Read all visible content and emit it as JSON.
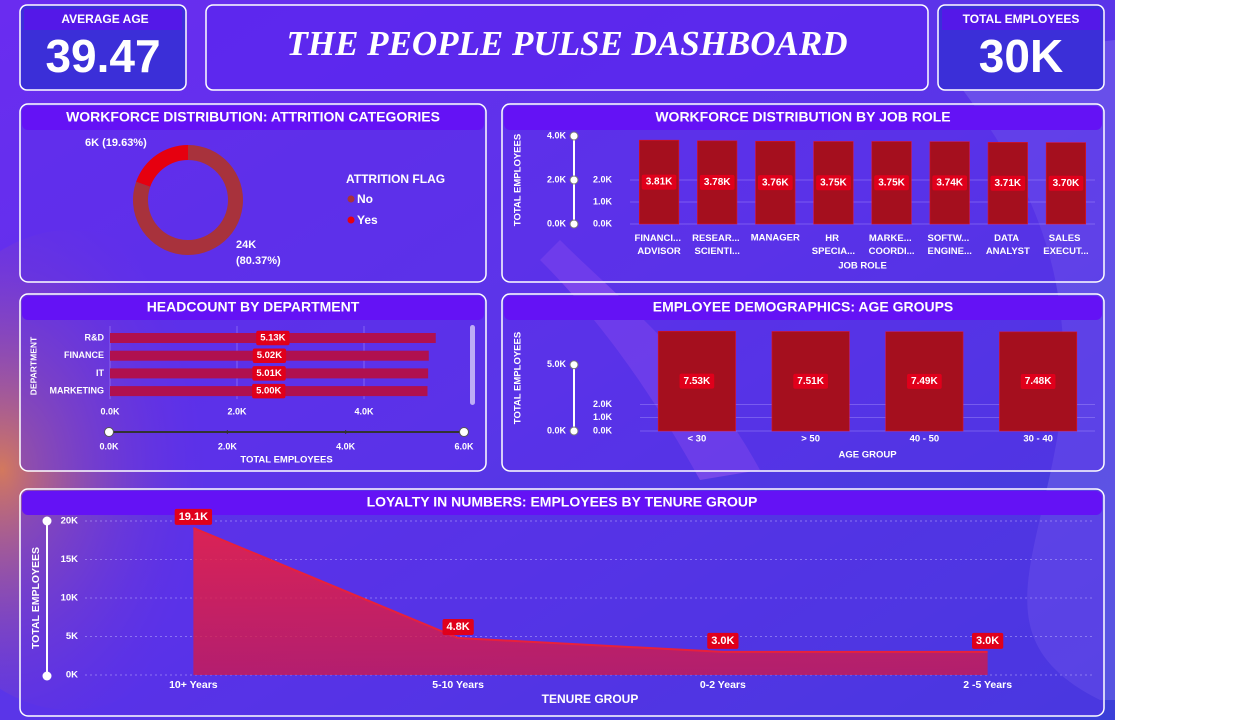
{
  "title": "THE PEOPLE PULSE DASHBOARD",
  "kpis": [
    {
      "label": "AVERAGE AGE",
      "value": "39.47"
    },
    {
      "label": "TOTAL EMPLOYEES",
      "value": "30K"
    }
  ],
  "chart_data": [
    {
      "type": "pie",
      "title": "WORKFORCE DISTRIBUTION: ATTRITION CATEGORIES",
      "legend_title": "ATTRITION FLAG",
      "categories": [
        "No",
        "Yes"
      ],
      "values": [
        80.37,
        19.63
      ],
      "value_labels": [
        "24K (80.37%)",
        "6K (19.63%)"
      ],
      "colors": [
        "#a8323c",
        "#e6000f"
      ]
    },
    {
      "type": "bar",
      "title": "WORKFORCE DISTRIBUTION BY JOB ROLE",
      "x_label": "JOB ROLE",
      "y_label": "TOTAL EMPLOYEES",
      "categories": [
        "FINANCI... ADVISOR",
        "RESEAR... SCIENTI...",
        "MANAGER",
        "HR SPECIA...",
        "MARKE... COORDI...",
        "SOFTW... ENGINE...",
        "DATA ANALYST",
        "SALES EXECUT..."
      ],
      "values": [
        3810,
        3780,
        3760,
        3750,
        3750,
        3740,
        3710,
        3700
      ],
      "value_labels": [
        "3.81K",
        "3.78K",
        "3.76K",
        "3.75K",
        "3.75K",
        "3.74K",
        "3.71K",
        "3.70K"
      ],
      "color": "#a50f1e",
      "ylim": [
        0,
        4000
      ],
      "yticks": [
        {
          "value": 0,
          "label": "0.0K"
        },
        {
          "value": 1000,
          "label": "1.0K"
        },
        {
          "value": 2000,
          "label": "2.0K"
        }
      ],
      "slider_ticks": [
        {
          "value": 0,
          "label": "0.0K"
        },
        {
          "value": 2000,
          "label": "2.0K"
        },
        {
          "value": 4000,
          "label": "4.0K"
        }
      ],
      "grid": true
    },
    {
      "type": "hbar",
      "title": "HEADCOUNT BY DEPARTMENT",
      "x_label": "TOTAL EMPLOYEES",
      "y_label": "DEPARTMENT",
      "categories": [
        "R&D",
        "FINANCE",
        "IT",
        "MARKETING"
      ],
      "values": [
        5130,
        5020,
        5010,
        5000
      ],
      "value_labels": [
        "5.13K",
        "5.02K",
        "5.01K",
        "5.00K"
      ],
      "color": "#b0104f",
      "xlim": [
        0,
        6000
      ],
      "xticks": [
        {
          "value": 0,
          "label": "0.0K"
        },
        {
          "value": 2000,
          "label": "2.0K"
        },
        {
          "value": 4000,
          "label": "4.0K"
        }
      ],
      "slider_ticks": [
        {
          "value": 0,
          "label": "0.0K"
        },
        {
          "value": 2000,
          "label": "2.0K"
        },
        {
          "value": 4000,
          "label": "4.0K"
        },
        {
          "value": 6000,
          "label": "6.0K"
        }
      ],
      "grid": true
    },
    {
      "type": "bar",
      "title": "EMPLOYEE DEMOGRAPHICS: AGE GROUPS",
      "x_label": "AGE GROUP",
      "y_label": "TOTAL EMPLOYEES",
      "categories": [
        "< 30",
        "> 50",
        "40 - 50",
        "30 - 40"
      ],
      "values": [
        7530,
        7510,
        7490,
        7480
      ],
      "value_labels": [
        "7.53K",
        "7.51K",
        "7.49K",
        "7.48K"
      ],
      "color": "#a50f1e",
      "ylim": [
        0,
        8000
      ],
      "yticks": [
        {
          "value": 0,
          "label": "0.0K"
        },
        {
          "value": 1000,
          "label": "1.0K"
        },
        {
          "value": 2000,
          "label": "2.0K"
        }
      ],
      "slider_ticks": [
        {
          "value": 0,
          "label": "0.0K"
        },
        {
          "value": 5000,
          "label": "5.0K"
        }
      ],
      "grid": true
    },
    {
      "type": "area",
      "title": "LOYALTY IN NUMBERS: EMPLOYEES BY TENURE GROUP",
      "x_label": "TENURE GROUP",
      "y_label": "TOTAL EMPLOYEES",
      "categories": [
        "10+ Years",
        "5-10 Years",
        "0-2 Years",
        "2 -5 Years"
      ],
      "values": [
        19100,
        4800,
        3000,
        3000
      ],
      "value_labels": [
        "19.1K",
        "4.8K",
        "3.0K",
        "3.0K"
      ],
      "color": "#e8203c",
      "ylim": [
        0,
        20000
      ],
      "yticks": [
        {
          "value": 0,
          "label": "0K"
        },
        {
          "value": 5000,
          "label": "5K"
        },
        {
          "value": 10000,
          "label": "10K"
        },
        {
          "value": 15000,
          "label": "15K"
        },
        {
          "value": 20000,
          "label": "20K"
        }
      ],
      "grid": true
    }
  ]
}
